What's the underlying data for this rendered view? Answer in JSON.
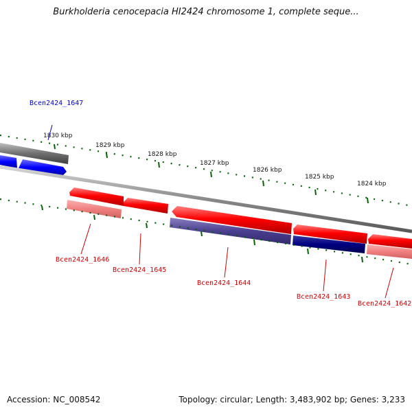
{
  "title": "Burkholderia cenocepacia HI2424 chromosome 1, complete seque...",
  "footer": {
    "accession": "Accession: NC_008542",
    "summary": "Topology: circular; Length: 3,483,902 bp; Genes: 3,233"
  },
  "scale_labels": [
    "1830 kbp",
    "1829 kbp",
    "1828 kbp",
    "1827 kbp",
    "1826 kbp",
    "1825 kbp",
    "1824 kbp"
  ],
  "genes": [
    {
      "name": "Bcen2424_1647",
      "color": "#0000cc"
    },
    {
      "name": "Bcen2424_1646",
      "color": "#cc0000"
    },
    {
      "name": "Bcen2424_1645",
      "color": "#cc0000"
    },
    {
      "name": "Bcen2424_1644",
      "color": "#cc0000"
    },
    {
      "name": "Bcen2424_1643",
      "color": "#cc0000"
    },
    {
      "name": "Bcen2424_1642",
      "color": "#cc0000"
    }
  ],
  "colors": {
    "forward_feature": "#ff0000",
    "forward_feature_light": "#f08080",
    "reverse_feature": "#0000ff",
    "reverse_feature_dark": "#000080",
    "reverse_feature_muted": "#4b3f8f",
    "backbone": "#808080",
    "tick": "#006400"
  }
}
